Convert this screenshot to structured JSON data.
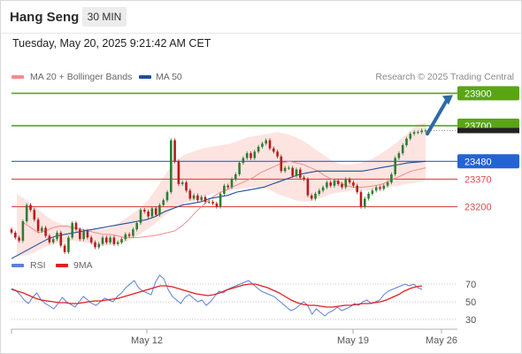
{
  "header": {
    "ticker": "Hang Seng",
    "timeframe": "30 MIN",
    "timestamp": "Tuesday, May 20, 2025 9:21:42 AM CET",
    "credit": "Research © 2025 Trading Central"
  },
  "colors": {
    "candle_up": "#2e7d32",
    "candle_down": "#b71c1c",
    "ma20_bollinger": "#f28c8c",
    "band_fill": "#fde1de",
    "ma50": "#1f4e9c",
    "resistance": "#5aa516",
    "pivot": "#2563d4",
    "support": "#e04a4a",
    "rsi": "#5b7fd9",
    "rsi_ma": "#e02020",
    "arrow": "#2d6aa8"
  },
  "chart_data": [
    {
      "type": "candlestick",
      "title": "Hang Seng",
      "legend": [
        {
          "name": "MA 20 + Bollinger Bands",
          "color": "#f28c8c"
        },
        {
          "name": "MA 50",
          "color": "#1f4e9c"
        }
      ],
      "legend_placement": "top-left",
      "x_tick_labels": [
        "May 12",
        "May 19",
        "May 26"
      ],
      "ylim": [
        22930,
        23935
      ],
      "levels": [
        {
          "label": "23900",
          "value": 23900,
          "kind": "resistance",
          "badge": true
        },
        {
          "label": "23700",
          "value": 23700,
          "kind": "resistance",
          "badge": true
        },
        {
          "label": "23480",
          "value": 23480,
          "kind": "pivot",
          "badge": true
        },
        {
          "label": "23370",
          "value": 23370,
          "kind": "support",
          "badge": false
        },
        {
          "label": "23200",
          "value": 23200,
          "kind": "support",
          "badge": false
        }
      ],
      "arrow": {
        "from_value": 23650,
        "to_value": 23900,
        "direction": "up"
      },
      "close_series": [
        23040,
        23010,
        22990,
        23110,
        23210,
        23180,
        23120,
        23050,
        23070,
        23020,
        22980,
        23000,
        23040,
        22960,
        22920,
        23010,
        23100,
        23060,
        23000,
        23050,
        23010,
        22980,
        22950,
        22970,
        23010,
        22980,
        23010,
        22970,
        22980,
        23000,
        23030,
        23020,
        23060,
        23100,
        23180,
        23170,
        23140,
        23190,
        23150,
        23210,
        23240,
        23290,
        23610,
        23480,
        23340,
        23350,
        23300,
        23250,
        23270,
        23240,
        23260,
        23230,
        23230,
        23220,
        23200,
        23280,
        23330,
        23320,
        23370,
        23400,
        23470,
        23500,
        23530,
        23500,
        23540,
        23570,
        23590,
        23610,
        23560,
        23540,
        23510,
        23420,
        23440,
        23440,
        23390,
        23430,
        23380,
        23370,
        23270,
        23250,
        23280,
        23300,
        23320,
        23350,
        23330,
        23360,
        23340,
        23320,
        23370,
        23350,
        23330,
        23290,
        23200,
        23250,
        23280,
        23300,
        23320,
        23310,
        23330,
        23350,
        23400,
        23500,
        23530,
        23580,
        23620,
        23650,
        23660,
        23660,
        23670,
        23670
      ],
      "ma20": [
        23100,
        23070,
        23040,
        23050,
        23070,
        23080,
        23080,
        23070,
        23060,
        23050,
        23040,
        23030,
        23030,
        23020,
        23010,
        23010,
        23010,
        23015,
        23020,
        23030,
        23040,
        23050,
        23080,
        23120,
        23170,
        23210,
        23250,
        23280,
        23300,
        23320,
        23340,
        23360,
        23380,
        23410,
        23430,
        23450,
        23470,
        23480,
        23470,
        23460,
        23440,
        23420,
        23390,
        23370,
        23350,
        23330,
        23320,
        23320,
        23325,
        23330,
        23340,
        23360,
        23380,
        23400,
        23420,
        23430,
        23440
      ],
      "ma50": [
        22880,
        22910,
        22940,
        22970,
        23000,
        23020,
        23030,
        23040,
        23050,
        23060,
        23070,
        23080,
        23090,
        23100,
        23110,
        23120,
        23140,
        23170,
        23190,
        23210,
        23220,
        23230,
        23250,
        23260,
        23270,
        23290,
        23300,
        23310,
        23320,
        23340,
        23360,
        23380,
        23400,
        23410,
        23420,
        23420,
        23420,
        23420,
        23420,
        23420,
        23430,
        23440,
        23450,
        23460,
        23470,
        23475,
        23480
      ],
      "bb_upper": [
        23280,
        23240,
        23200,
        23150,
        23110,
        23090,
        23080,
        23070,
        23060,
        23060,
        23070,
        23100,
        23140,
        23180,
        23230,
        23310,
        23400,
        23480,
        23520,
        23540,
        23560,
        23570,
        23580,
        23590,
        23610,
        23630,
        23640,
        23650,
        23660,
        23650,
        23630,
        23600,
        23560,
        23520,
        23480,
        23460,
        23460,
        23470,
        23490,
        23520,
        23560,
        23600,
        23650,
        23700,
        23720
      ],
      "bb_lower": [
        22890,
        22900,
        22920,
        22950,
        22970,
        22980,
        22990,
        22980,
        22970,
        22960,
        22960,
        22970,
        22990,
        23020,
        23060,
        23100,
        23150,
        23190,
        23220,
        23240,
        23260,
        23280,
        23290,
        23300,
        23310,
        23320,
        23320,
        23310,
        23280,
        23260,
        23240,
        23230,
        23240,
        23260,
        23280,
        23290,
        23300,
        23300,
        23300,
        23310,
        23320,
        23330,
        23340,
        23350,
        23360
      ]
    },
    {
      "type": "line",
      "legend": [
        {
          "name": "RSI",
          "color": "#5b7fd9"
        },
        {
          "name": "9MA",
          "color": "#e02020"
        }
      ],
      "legend_placement": "top-left",
      "ylim": [
        20,
        84
      ],
      "y_tick_labels": [
        "70",
        "50",
        "30"
      ],
      "y_ticks": [
        70,
        50,
        30
      ],
      "series": [
        {
          "name": "RSI",
          "values": [
            65,
            63,
            58,
            52,
            48,
            55,
            60,
            52,
            48,
            45,
            42,
            48,
            55,
            50,
            47,
            44,
            50,
            56,
            52,
            48,
            46,
            50,
            54,
            52,
            50,
            56,
            60,
            66,
            70,
            74,
            66,
            62,
            60,
            58,
            72,
            80,
            76,
            64,
            56,
            52,
            48,
            55,
            58,
            54,
            50,
            52,
            46,
            50,
            56,
            62,
            60,
            64,
            66,
            68,
            70,
            72,
            74,
            70,
            66,
            62,
            60,
            58,
            56,
            52,
            48,
            44,
            40,
            42,
            46,
            50,
            46,
            36,
            42,
            38,
            34,
            38,
            40,
            44,
            40,
            42,
            44,
            48,
            46,
            50,
            52,
            48,
            50,
            52,
            58,
            62,
            64,
            66,
            68,
            70,
            68,
            70,
            66,
            64
          ]
        },
        {
          "name": "9MA",
          "values": [
            64,
            62,
            60,
            57,
            54,
            52,
            51,
            50,
            49,
            49,
            48,
            48,
            49,
            50,
            51,
            51,
            52,
            53,
            54,
            56,
            58,
            60,
            62,
            64,
            66,
            68,
            68,
            67,
            65,
            63,
            61,
            59,
            58,
            57,
            58,
            60,
            63,
            65,
            67,
            69,
            70,
            70,
            68,
            66,
            63,
            60,
            56,
            52,
            49,
            47,
            46,
            46,
            45,
            44,
            44,
            45,
            46,
            46,
            47,
            48,
            48,
            49,
            50,
            52,
            55,
            58,
            62,
            65,
            67,
            68
          ]
        }
      ]
    }
  ]
}
